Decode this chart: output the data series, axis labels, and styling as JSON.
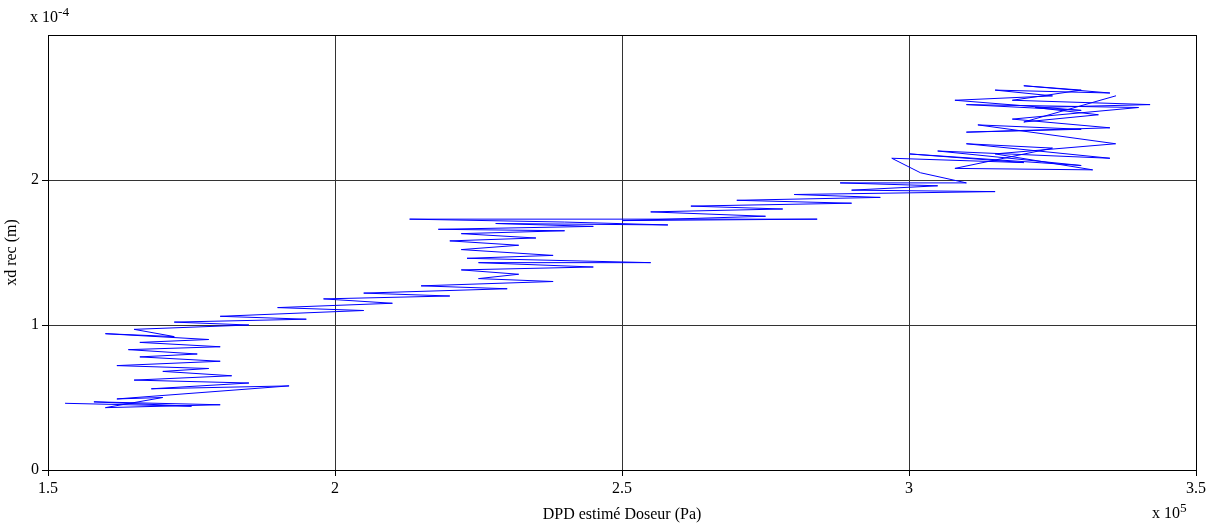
{
  "chart_data": {
    "type": "line",
    "xlabel": "DPD estimé Doseur (Pa)",
    "ylabel": "xd rec (m)",
    "annotations": [
      "x 10$^{-4}$",
      "x 10$^{5}$"
    ],
    "xlim": [
      1.5,
      3.5
    ],
    "xticks": [
      1.5,
      2,
      2.5,
      3,
      3.5
    ],
    "ylim": [
      0,
      3
    ],
    "yticks": [
      0,
      1,
      2
    ],
    "grid": true,
    "marker": "none",
    "line_style": "solid",
    "legend": false,
    "series": [
      {
        "color": "#0000ff",
        "x": [
          1.53,
          1.75,
          1.58,
          1.8,
          1.6,
          1.7,
          1.62,
          1.92,
          1.68,
          1.85,
          1.65,
          1.82,
          1.7,
          1.78,
          1.62,
          1.8,
          1.66,
          1.76,
          1.64,
          1.8,
          1.66,
          1.78,
          1.6,
          1.72,
          1.65,
          1.85,
          1.72,
          1.95,
          1.8,
          2.05,
          1.9,
          2.1,
          1.98,
          2.2,
          2.05,
          2.3,
          2.15,
          2.38,
          2.25,
          2.32,
          2.22,
          2.45,
          2.25,
          2.55,
          2.23,
          2.38,
          2.22,
          2.32,
          2.2,
          2.35,
          2.22,
          2.4,
          2.18,
          2.45,
          2.28,
          2.58,
          2.4,
          2.13,
          2.84,
          2.5,
          2.75,
          2.55,
          2.78,
          2.62,
          2.9,
          2.7,
          2.95,
          2.8,
          3.15,
          2.9,
          3.05,
          2.88,
          3.1,
          3.02,
          2.97,
          3.2,
          3,
          3.3,
          3.05,
          3.35,
          3.1,
          3.25,
          3.08,
          3.32,
          3.15,
          3.36,
          3.12,
          3.3,
          3.1,
          3.35,
          3.18,
          3.4,
          3.1,
          3.3,
          3.08,
          3.25,
          3.15,
          3.35,
          3.2,
          3.3,
          3.18,
          3.42,
          3.22,
          3.33,
          3.2,
          3.36
        ],
        "values": [
          0.46,
          0.44,
          0.47,
          0.45,
          0.43,
          0.5,
          0.49,
          0.58,
          0.56,
          0.6,
          0.62,
          0.65,
          0.68,
          0.7,
          0.72,
          0.75,
          0.78,
          0.8,
          0.83,
          0.85,
          0.88,
          0.9,
          0.94,
          0.92,
          0.97,
          1,
          1.02,
          1.04,
          1.06,
          1.1,
          1.12,
          1.15,
          1.18,
          1.2,
          1.22,
          1.25,
          1.27,
          1.3,
          1.32,
          1.35,
          1.38,
          1.4,
          1.43,
          1.43,
          1.46,
          1.48,
          1.52,
          1.55,
          1.58,
          1.6,
          1.63,
          1.65,
          1.66,
          1.68,
          1.7,
          1.69,
          1.71,
          1.73,
          1.73,
          1.72,
          1.75,
          1.78,
          1.8,
          1.82,
          1.84,
          1.86,
          1.88,
          1.9,
          1.92,
          1.93,
          1.96,
          1.98,
          1.98,
          2.05,
          2.15,
          2.12,
          2.18,
          2.1,
          2.2,
          2.15,
          2.25,
          2.22,
          2.08,
          2.07,
          2.18,
          2.25,
          2.38,
          2.35,
          2.33,
          2.36,
          2.42,
          2.5,
          2.52,
          2.48,
          2.55,
          2.58,
          2.62,
          2.6,
          2.65,
          2.62,
          2.55,
          2.52,
          2.5,
          2.45,
          2.4,
          2.58
        ]
      }
    ]
  }
}
